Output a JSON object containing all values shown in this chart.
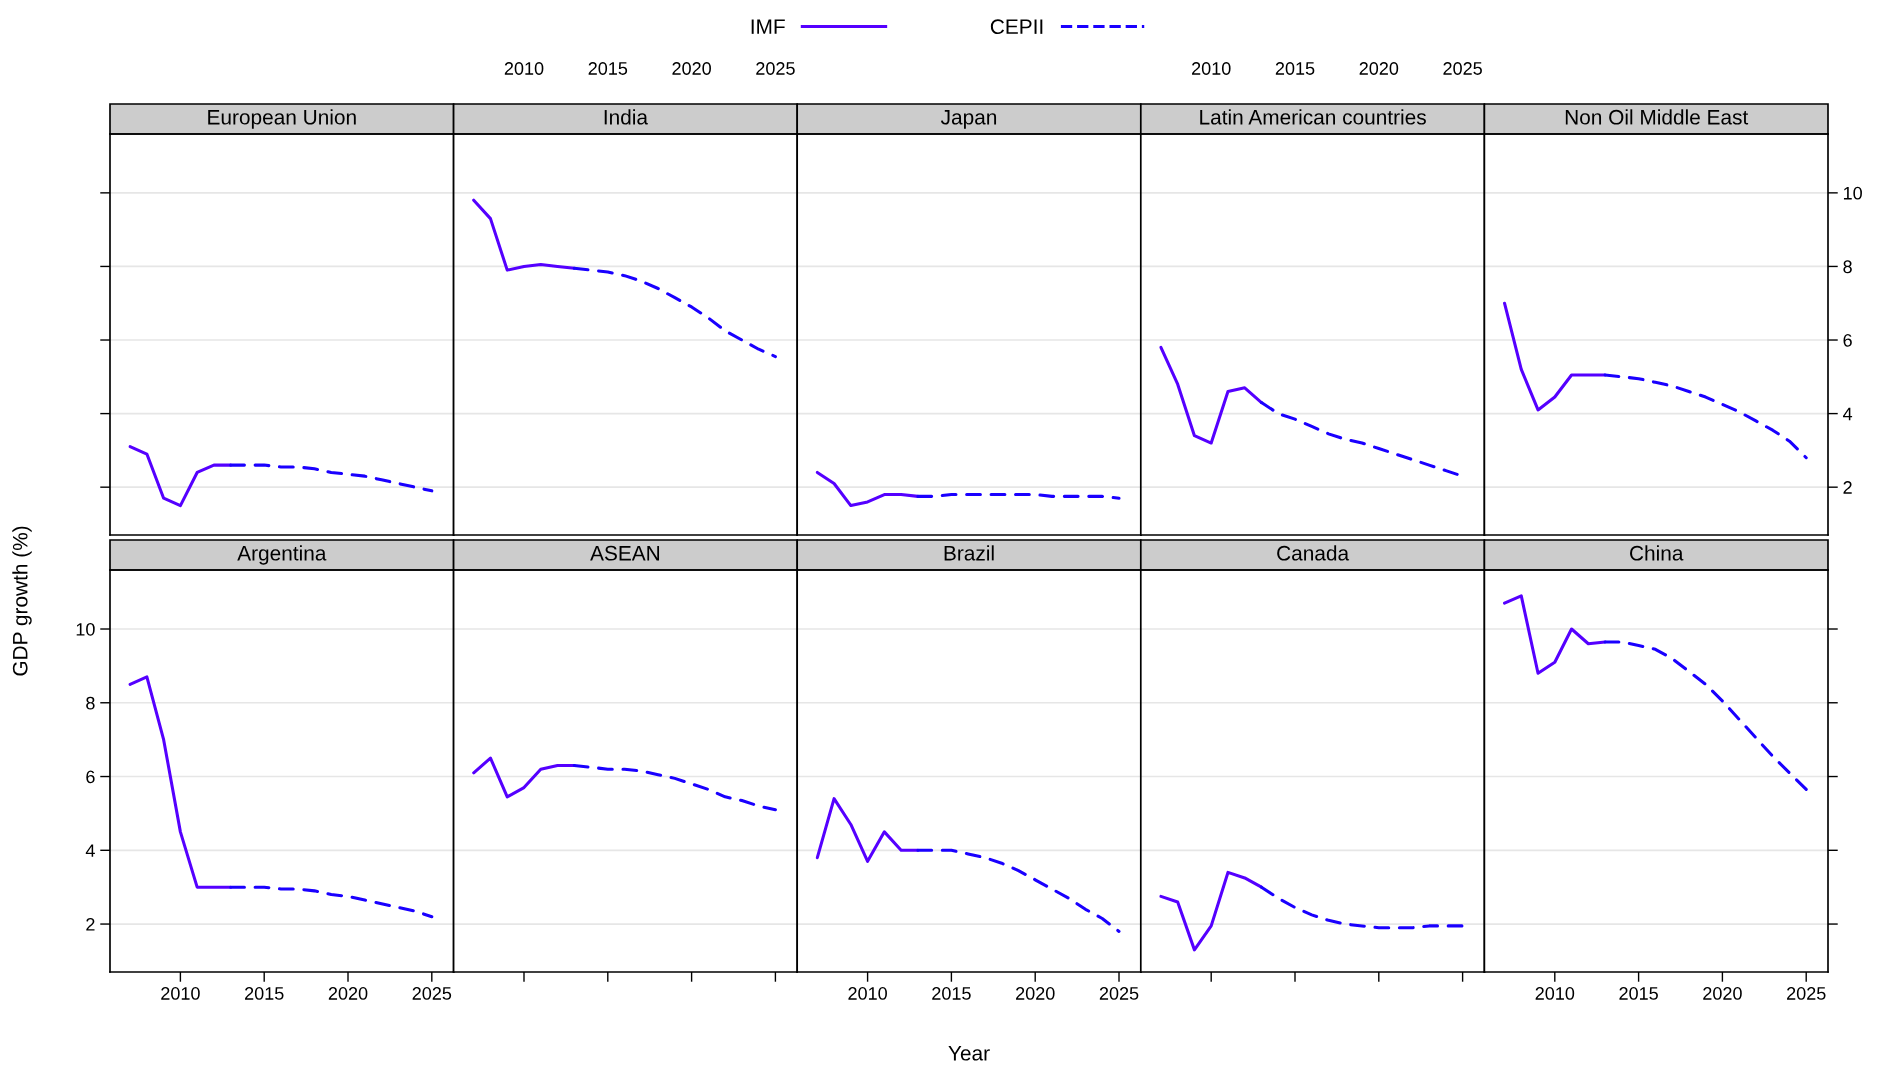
{
  "chart_data": [
    {
      "type": "line",
      "title": "European Union",
      "xlim": [
        2005.8,
        2026.3
      ],
      "xticks": [
        2010,
        2015,
        2020,
        2025
      ],
      "ylim": [
        0.7,
        11.6
      ],
      "yticks": [
        2,
        4,
        6,
        8,
        10
      ],
      "tick_labels": false,
      "grid": "y",
      "legend": "top",
      "series": [
        {
          "name": "IMF",
          "color": "#5500ff",
          "line_style": "solid",
          "x": [
            2007,
            2008,
            2009,
            2010,
            2011,
            2012,
            2013
          ],
          "values": [
            3.1,
            2.9,
            1.7,
            1.5,
            2.4,
            2.6,
            2.6
          ]
        },
        {
          "name": "CEPII",
          "color": "#1a00ff",
          "line_style": "dashed",
          "x": [
            2013,
            2014,
            2015,
            2016,
            2017,
            2018,
            2019,
            2020,
            2021,
            2022,
            2023,
            2024,
            2025
          ],
          "values": [
            2.6,
            2.6,
            2.6,
            2.55,
            2.55,
            2.5,
            2.4,
            2.35,
            2.3,
            2.2,
            2.1,
            2.0,
            1.9
          ]
        }
      ]
    },
    {
      "type": "line",
      "title": "India",
      "xlim": [
        2005.8,
        2026.3
      ],
      "xticks": [
        2010,
        2015,
        2020,
        2025
      ],
      "ylim": [
        0.7,
        11.6
      ],
      "yticks": [
        2,
        4,
        6,
        8,
        10
      ],
      "tick_labels": "x",
      "grid": "y",
      "series": [
        {
          "color": "#5500ff",
          "line_style": "solid",
          "x": [
            2007,
            2008,
            2009,
            2010,
            2011,
            2012,
            2013
          ],
          "values": [
            9.8,
            9.3,
            7.9,
            8.0,
            8.05,
            8.0,
            7.95
          ]
        },
        {
          "color": "#1a00ff",
          "line_style": "dashed",
          "x": [
            2013,
            2014,
            2015,
            2016,
            2017,
            2018,
            2019,
            2020,
            2021,
            2022,
            2023,
            2024,
            2025
          ],
          "values": [
            7.95,
            7.9,
            7.85,
            7.75,
            7.6,
            7.4,
            7.15,
            6.9,
            6.6,
            6.25,
            6.0,
            5.75,
            5.55
          ]
        }
      ]
    },
    {
      "type": "line",
      "title": "Japan",
      "xlim": [
        2005.8,
        2026.3
      ],
      "xticks": [
        2010,
        2015,
        2020,
        2025
      ],
      "ylim": [
        0.7,
        11.6
      ],
      "yticks": [
        2,
        4,
        6,
        8,
        10
      ],
      "tick_labels": false,
      "grid": "y",
      "series": [
        {
          "color": "#5500ff",
          "line_style": "solid",
          "x": [
            2007,
            2008,
            2009,
            2010,
            2011,
            2012,
            2013
          ],
          "values": [
            2.4,
            2.1,
            1.5,
            1.6,
            1.8,
            1.8,
            1.75
          ]
        },
        {
          "color": "#1a00ff",
          "line_style": "dashed",
          "x": [
            2013,
            2014,
            2015,
            2016,
            2017,
            2018,
            2019,
            2020,
            2021,
            2022,
            2023,
            2024,
            2025
          ],
          "values": [
            1.75,
            1.75,
            1.8,
            1.8,
            1.8,
            1.8,
            1.8,
            1.8,
            1.75,
            1.75,
            1.75,
            1.75,
            1.7
          ]
        }
      ]
    },
    {
      "type": "line",
      "title": "Latin American countries",
      "xlim": [
        2005.8,
        2026.3
      ],
      "xticks": [
        2010,
        2015,
        2020,
        2025
      ],
      "ylim": [
        0.7,
        11.6
      ],
      "yticks": [
        2,
        4,
        6,
        8,
        10
      ],
      "tick_labels": "x",
      "grid": "y",
      "series": [
        {
          "color": "#5500ff",
          "line_style": "solid",
          "x": [
            2007,
            2008,
            2009,
            2010,
            2011,
            2012,
            2013
          ],
          "values": [
            5.8,
            4.8,
            3.4,
            3.2,
            4.6,
            4.7,
            4.3
          ]
        },
        {
          "color": "#1a00ff",
          "line_style": "dashed",
          "x": [
            2013,
            2014,
            2015,
            2016,
            2017,
            2018,
            2019,
            2020,
            2021,
            2022,
            2023,
            2024,
            2025
          ],
          "values": [
            4.3,
            4.0,
            3.85,
            3.65,
            3.45,
            3.3,
            3.2,
            3.05,
            2.9,
            2.75,
            2.6,
            2.45,
            2.3
          ]
        }
      ]
    },
    {
      "type": "line",
      "title": "Non Oil Middle East",
      "xlim": [
        2005.8,
        2026.3
      ],
      "xticks": [
        2010,
        2015,
        2020,
        2025
      ],
      "ylim": [
        0.7,
        11.6
      ],
      "yticks": [
        2,
        4,
        6,
        8,
        10
      ],
      "tick_labels": "y",
      "grid": "y",
      "series": [
        {
          "color": "#5500ff",
          "line_style": "solid",
          "x": [
            2007,
            2008,
            2009,
            2010,
            2011,
            2012,
            2013
          ],
          "values": [
            7.0,
            5.2,
            4.1,
            4.45,
            5.05,
            5.05,
            5.05
          ]
        },
        {
          "color": "#1a00ff",
          "line_style": "dashed",
          "x": [
            2013,
            2014,
            2015,
            2016,
            2017,
            2018,
            2019,
            2020,
            2021,
            2022,
            2023,
            2024,
            2025
          ],
          "values": [
            5.05,
            5.0,
            4.95,
            4.85,
            4.75,
            4.6,
            4.45,
            4.25,
            4.05,
            3.8,
            3.55,
            3.25,
            2.8
          ]
        }
      ]
    },
    {
      "type": "line",
      "title": "Argentina",
      "ylabel": "GDP growth (%)",
      "xlim": [
        2005.8,
        2026.3
      ],
      "xticks": [
        2010,
        2015,
        2020,
        2025
      ],
      "ylim": [
        0.7,
        11.6
      ],
      "yticks": [
        2,
        4,
        6,
        8,
        10
      ],
      "grid": "y",
      "series": [
        {
          "color": "#5500ff",
          "line_style": "solid",
          "x": [
            2007,
            2008,
            2009,
            2010,
            2011,
            2012,
            2013
          ],
          "values": [
            8.5,
            8.7,
            7.0,
            4.5,
            3.0,
            3.0,
            3.0
          ]
        },
        {
          "color": "#1a00ff",
          "line_style": "dashed",
          "x": [
            2013,
            2014,
            2015,
            2016,
            2017,
            2018,
            2019,
            2020,
            2021,
            2022,
            2023,
            2024,
            2025
          ],
          "values": [
            3.0,
            3.0,
            3.0,
            2.95,
            2.95,
            2.9,
            2.8,
            2.75,
            2.65,
            2.55,
            2.45,
            2.35,
            2.2
          ]
        }
      ]
    },
    {
      "type": "line",
      "title": "ASEAN",
      "xlim": [
        2005.8,
        2026.3
      ],
      "xticks": [
        2010,
        2015,
        2020,
        2025
      ],
      "ylim": [
        0.7,
        11.6
      ],
      "yticks": [
        2,
        4,
        6,
        8,
        10
      ],
      "tick_labels": false,
      "grid": "y",
      "series": [
        {
          "color": "#5500ff",
          "line_style": "solid",
          "x": [
            2007,
            2008,
            2009,
            2010,
            2011,
            2012,
            2013
          ],
          "values": [
            6.1,
            6.5,
            5.45,
            5.7,
            6.2,
            6.3,
            6.3
          ]
        },
        {
          "color": "#1a00ff",
          "line_style": "dashed",
          "x": [
            2013,
            2014,
            2015,
            2016,
            2017,
            2018,
            2019,
            2020,
            2021,
            2022,
            2023,
            2024,
            2025
          ],
          "values": [
            6.3,
            6.25,
            6.2,
            6.2,
            6.15,
            6.05,
            5.95,
            5.8,
            5.65,
            5.45,
            5.35,
            5.2,
            5.1
          ]
        }
      ]
    },
    {
      "type": "line",
      "title": "Brazil",
      "xlabel": "Year",
      "xlim": [
        2005.8,
        2026.3
      ],
      "xticks": [
        2010,
        2015,
        2020,
        2025
      ],
      "ylim": [
        0.7,
        11.6
      ],
      "yticks": [
        2,
        4,
        6,
        8,
        10
      ],
      "tick_labels": "x",
      "grid": "y",
      "series": [
        {
          "color": "#5500ff",
          "line_style": "solid",
          "x": [
            2007,
            2008,
            2009,
            2010,
            2011,
            2012,
            2013
          ],
          "values": [
            3.8,
            5.4,
            4.7,
            3.7,
            4.5,
            4.0,
            4.0
          ]
        },
        {
          "color": "#1a00ff",
          "line_style": "dashed",
          "x": [
            2013,
            2014,
            2015,
            2016,
            2017,
            2018,
            2019,
            2020,
            2021,
            2022,
            2023,
            2024,
            2025
          ],
          "values": [
            4.0,
            4.0,
            4.0,
            3.9,
            3.8,
            3.65,
            3.45,
            3.2,
            2.95,
            2.7,
            2.4,
            2.15,
            1.8
          ]
        }
      ]
    },
    {
      "type": "line",
      "title": "Canada",
      "xlim": [
        2005.8,
        2026.3
      ],
      "xticks": [
        2010,
        2015,
        2020,
        2025
      ],
      "ylim": [
        0.7,
        11.6
      ],
      "yticks": [
        2,
        4,
        6,
        8,
        10
      ],
      "tick_labels": false,
      "grid": "y",
      "series": [
        {
          "color": "#5500ff",
          "line_style": "solid",
          "x": [
            2007,
            2008,
            2009,
            2010,
            2011,
            2012,
            2013
          ],
          "values": [
            2.75,
            2.6,
            1.3,
            1.95,
            3.4,
            3.25,
            3.0
          ]
        },
        {
          "color": "#1a00ff",
          "line_style": "dashed",
          "x": [
            2013,
            2014,
            2015,
            2016,
            2017,
            2018,
            2019,
            2020,
            2021,
            2022,
            2023,
            2024,
            2025
          ],
          "values": [
            3.0,
            2.7,
            2.45,
            2.25,
            2.1,
            2.0,
            1.95,
            1.9,
            1.9,
            1.9,
            1.95,
            1.95,
            1.95
          ]
        }
      ]
    },
    {
      "type": "line",
      "title": "China",
      "xlim": [
        2005.8,
        2026.3
      ],
      "xticks": [
        2010,
        2015,
        2020,
        2025
      ],
      "ylim": [
        0.7,
        11.6
      ],
      "yticks": [
        2,
        4,
        6,
        8,
        10
      ],
      "tick_labels": "x",
      "grid": "y",
      "series": [
        {
          "color": "#5500ff",
          "line_style": "solid",
          "x": [
            2007,
            2008,
            2009,
            2010,
            2011,
            2012,
            2013
          ],
          "values": [
            10.7,
            10.9,
            8.8,
            9.1,
            10.0,
            9.6,
            9.65
          ]
        },
        {
          "color": "#1a00ff",
          "line_style": "dashed",
          "x": [
            2013,
            2014,
            2015,
            2016,
            2017,
            2018,
            2019,
            2020,
            2021,
            2022,
            2023,
            2024,
            2025
          ],
          "values": [
            9.65,
            9.65,
            9.55,
            9.45,
            9.2,
            8.85,
            8.5,
            8.05,
            7.55,
            7.05,
            6.55,
            6.1,
            5.65
          ]
        }
      ]
    }
  ]
}
